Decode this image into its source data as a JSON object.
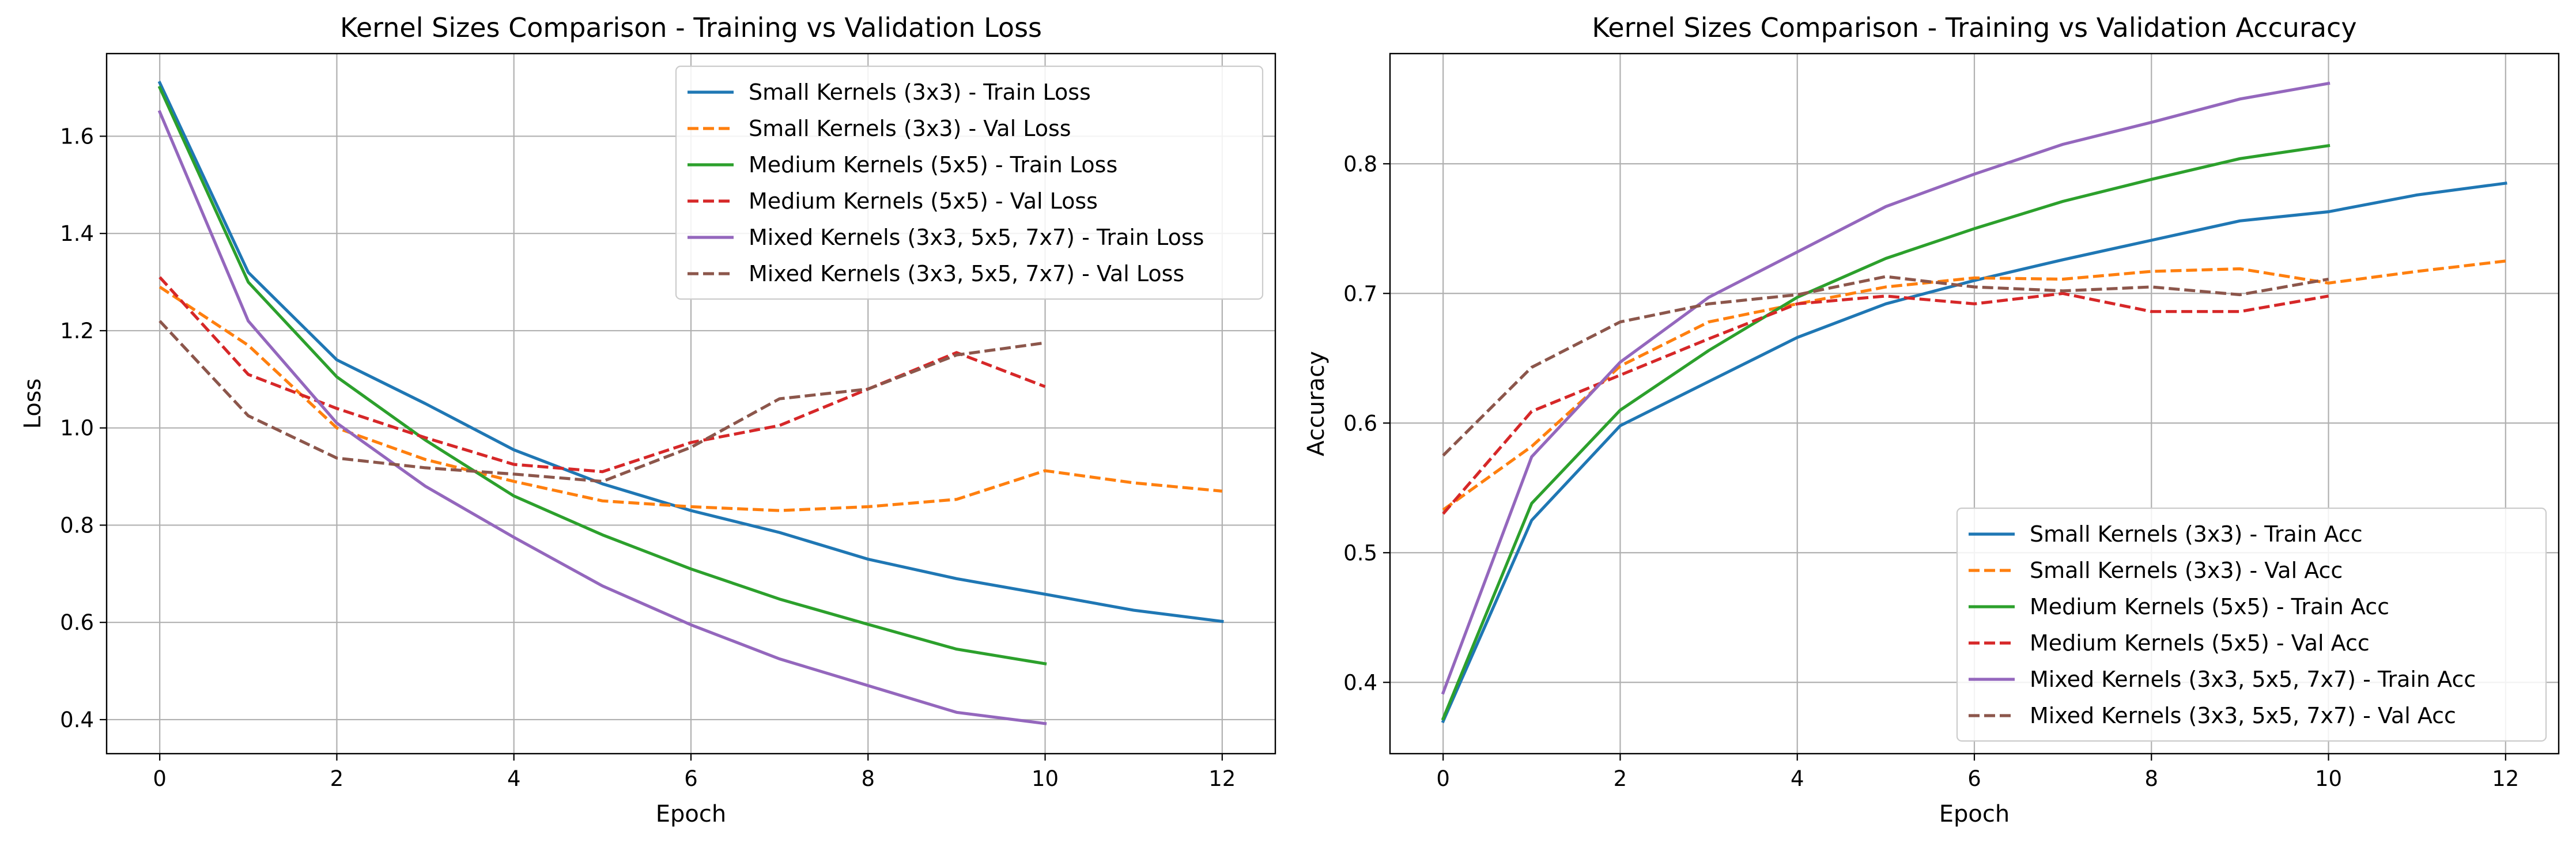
{
  "figure": {
    "background": "#ffffff",
    "colors": {
      "small": "#1f77b4",
      "small_val": "#ff7f0e",
      "medium": "#2ca02c",
      "medium_val": "#d62728",
      "mixed": "#9467bd",
      "mixed_val": "#8c564b",
      "grid": "#b0b0b0"
    }
  },
  "chart_data": [
    {
      "type": "line",
      "title": "Kernel Sizes Comparison - Training vs Validation Loss",
      "xlabel": "Epoch",
      "ylabel": "Loss",
      "xlim": [
        -0.6,
        12.6
      ],
      "ylim": [
        0.33,
        1.77
      ],
      "xticks": [
        0,
        2,
        4,
        6,
        8,
        10,
        12
      ],
      "yticks": [
        0.4,
        0.6,
        0.8,
        1.0,
        1.2,
        1.4,
        1.6
      ],
      "grid": true,
      "legend": "top-right",
      "series": [
        {
          "name": "Small Kernels (3x3) - Train Loss",
          "color": "#1f77b4",
          "style": "solid",
          "x": [
            0,
            1,
            2,
            3,
            4,
            5,
            6,
            7,
            8,
            9,
            10,
            11,
            12
          ],
          "y": [
            1.71,
            1.32,
            1.14,
            1.05,
            0.955,
            0.885,
            0.83,
            0.785,
            0.73,
            0.69,
            0.658,
            0.625,
            0.602
          ]
        },
        {
          "name": "Small Kernels (3x3) - Val Loss",
          "color": "#ff7f0e",
          "style": "dashed",
          "x": [
            0,
            1,
            2,
            3,
            4,
            5,
            6,
            7,
            8,
            9,
            10,
            11,
            12
          ],
          "y": [
            1.29,
            1.17,
            1.0,
            0.935,
            0.89,
            0.85,
            0.838,
            0.83,
            0.838,
            0.853,
            0.912,
            0.887,
            0.87
          ]
        },
        {
          "name": "Medium Kernels (5x5) - Train Loss",
          "color": "#2ca02c",
          "style": "solid",
          "x": [
            0,
            1,
            2,
            3,
            4,
            5,
            6,
            7,
            8,
            9,
            10
          ],
          "y": [
            1.7,
            1.3,
            1.105,
            0.975,
            0.86,
            0.78,
            0.71,
            0.648,
            0.596,
            0.545,
            0.515
          ]
        },
        {
          "name": "Medium Kernels (5x5) - Val Loss",
          "color": "#d62728",
          "style": "dashed",
          "x": [
            0,
            1,
            2,
            3,
            4,
            5,
            6,
            7,
            8,
            9,
            10
          ],
          "y": [
            1.31,
            1.11,
            1.04,
            0.98,
            0.925,
            0.91,
            0.97,
            1.005,
            1.08,
            1.155,
            1.085
          ]
        },
        {
          "name": "Mixed Kernels (3x3, 5x5, 7x7) - Train Loss",
          "color": "#9467bd",
          "style": "solid",
          "x": [
            0,
            1,
            2,
            3,
            4,
            5,
            6,
            7,
            8,
            9,
            10
          ],
          "y": [
            1.65,
            1.22,
            1.01,
            0.88,
            0.775,
            0.675,
            0.595,
            0.525,
            0.47,
            0.415,
            0.392
          ]
        },
        {
          "name": "Mixed Kernels (3x3, 5x5, 7x7) - Val Loss",
          "color": "#8c564b",
          "style": "dashed",
          "x": [
            0,
            1,
            2,
            3,
            4,
            5,
            6,
            7,
            8,
            9,
            10
          ],
          "y": [
            1.22,
            1.025,
            0.938,
            0.918,
            0.905,
            0.89,
            0.96,
            1.06,
            1.08,
            1.15,
            1.175
          ]
        }
      ]
    },
    {
      "type": "line",
      "title": "Kernel Sizes Comparison - Training vs Validation Accuracy",
      "xlabel": "Epoch",
      "ylabel": "Accuracy",
      "xlim": [
        -0.6,
        12.6
      ],
      "ylim": [
        0.345,
        0.885
      ],
      "xticks": [
        0,
        2,
        4,
        6,
        8,
        10,
        12
      ],
      "yticks": [
        0.4,
        0.5,
        0.6,
        0.7,
        0.8
      ],
      "grid": true,
      "legend": "lower-right",
      "series": [
        {
          "name": "Small Kernels (3x3) - Train Acc",
          "color": "#1f77b4",
          "style": "solid",
          "x": [
            0,
            1,
            2,
            3,
            4,
            5,
            6,
            7,
            8,
            9,
            10,
            11,
            12
          ],
          "y": [
            0.37,
            0.525,
            0.598,
            0.632,
            0.666,
            0.692,
            0.71,
            0.726,
            0.741,
            0.756,
            0.763,
            0.776,
            0.785
          ]
        },
        {
          "name": "Small Kernels (3x3) - Val Acc",
          "color": "#ff7f0e",
          "style": "dashed",
          "x": [
            0,
            1,
            2,
            3,
            4,
            5,
            6,
            7,
            8,
            9,
            10,
            11,
            12
          ],
          "y": [
            0.533,
            0.582,
            0.644,
            0.678,
            0.692,
            0.705,
            0.712,
            0.711,
            0.717,
            0.719,
            0.708,
            0.717,
            0.725
          ]
        },
        {
          "name": "Medium Kernels (5x5) - Train Acc",
          "color": "#2ca02c",
          "style": "solid",
          "x": [
            0,
            1,
            2,
            3,
            4,
            5,
            6,
            7,
            8,
            9,
            10
          ],
          "y": [
            0.372,
            0.538,
            0.61,
            0.656,
            0.697,
            0.727,
            0.75,
            0.771,
            0.788,
            0.804,
            0.814
          ]
        },
        {
          "name": "Medium Kernels (5x5) - Val Acc",
          "color": "#d62728",
          "style": "dashed",
          "x": [
            0,
            1,
            2,
            3,
            4,
            5,
            6,
            7,
            8,
            9,
            10
          ],
          "y": [
            0.53,
            0.609,
            0.637,
            0.665,
            0.692,
            0.698,
            0.692,
            0.7,
            0.686,
            0.686,
            0.698
          ]
        },
        {
          "name": "Mixed Kernels (3x3, 5x5, 7x7) - Train Acc",
          "color": "#9467bd",
          "style": "solid",
          "x": [
            0,
            1,
            2,
            3,
            4,
            5,
            6,
            7,
            8,
            9,
            10
          ],
          "y": [
            0.392,
            0.574,
            0.647,
            0.697,
            0.732,
            0.767,
            0.792,
            0.815,
            0.832,
            0.85,
            0.862
          ]
        },
        {
          "name": "Mixed Kernels (3x3, 5x5, 7x7) - Val Acc",
          "color": "#8c564b",
          "style": "dashed",
          "x": [
            0,
            1,
            2,
            3,
            4,
            5,
            6,
            7,
            8,
            9,
            10
          ],
          "y": [
            0.575,
            0.643,
            0.678,
            0.692,
            0.699,
            0.713,
            0.705,
            0.702,
            0.705,
            0.699,
            0.711
          ]
        }
      ]
    }
  ]
}
